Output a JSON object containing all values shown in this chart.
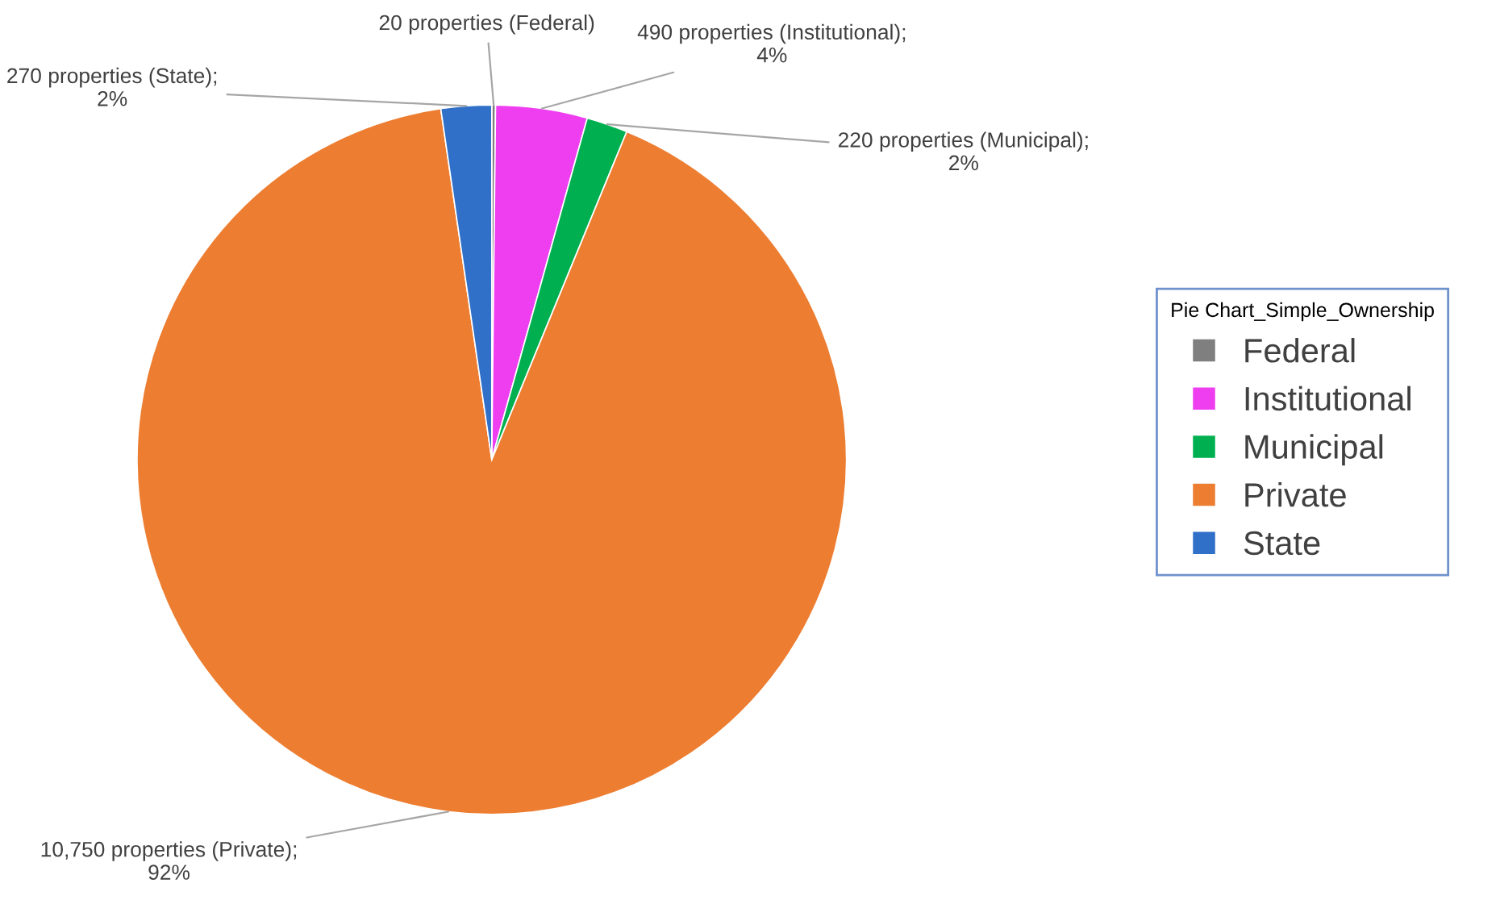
{
  "chart_data": {
    "type": "pie",
    "categories": [
      "Federal",
      "Institutional",
      "Municipal",
      "Private",
      "State"
    ],
    "values": [
      20,
      490,
      220,
      10750,
      270
    ],
    "colors": [
      "#7f7f7f",
      "#ee3ef0",
      "#00b050",
      "#ed7d31",
      "#3070c8"
    ],
    "value_labels": [
      "20 properties (Federal)",
      "490 properties (Institutional);\n4%",
      "220 properties (Municipal);\n2%",
      "10,750 properties (Private);\n92%",
      "270 properties (State);\n2%"
    ],
    "legend_title": "Pie Chart_Simple_Ownership",
    "legend": "right"
  }
}
